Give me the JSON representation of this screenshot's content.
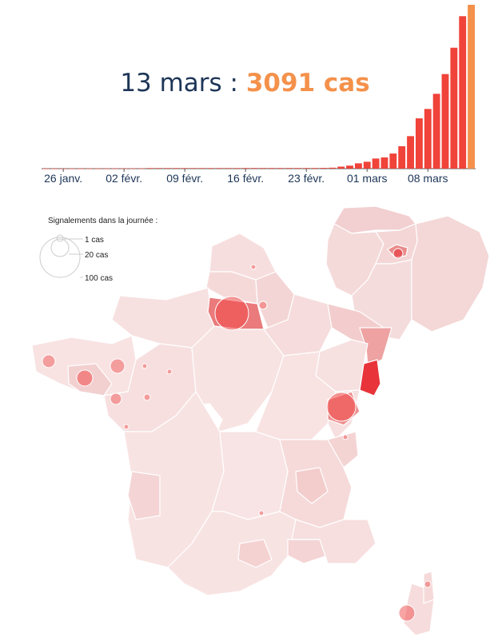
{
  "headline": {
    "date": "13 mars",
    "separator": " : ",
    "count": "3091 cas"
  },
  "chart_data": {
    "type": "bar",
    "title": "13 mars : 3091 cas",
    "x_tick_labels": [
      "26 janv.",
      "02 févr.",
      "09 févr.",
      "16 févr.",
      "23 févr.",
      "01 mars",
      "08 mars"
    ],
    "dates": [
      "24 janv.",
      "25 janv.",
      "26 janv.",
      "27 janv.",
      "28 janv.",
      "29 janv.",
      "30 janv.",
      "31 janv.",
      "01 févr.",
      "02 févr.",
      "03 févr.",
      "04 févr.",
      "05 févr.",
      "06 févr.",
      "07 févr.",
      "08 févr.",
      "09 févr.",
      "10 févr.",
      "11 févr.",
      "12 févr.",
      "13 févr.",
      "14 févr.",
      "15 févr.",
      "16 févr.",
      "17 févr.",
      "18 févr.",
      "19 févr.",
      "20 févr.",
      "21 févr.",
      "22 févr.",
      "23 févr.",
      "24 févr.",
      "25 févr.",
      "26 févr.",
      "27 févr.",
      "28 févr.",
      "29 févr.",
      "01 mars",
      "02 mars",
      "03 mars",
      "04 mars",
      "05 mars",
      "06 mars",
      "07 mars",
      "08 mars",
      "09 mars",
      "10 mars",
      "11 mars",
      "12 mars",
      "13 mars"
    ],
    "values": [
      3,
      3,
      3,
      3,
      3,
      5,
      5,
      6,
      6,
      6,
      6,
      6,
      11,
      11,
      11,
      11,
      11,
      11,
      11,
      11,
      11,
      11,
      11,
      12,
      12,
      12,
      12,
      12,
      12,
      12,
      12,
      12,
      14,
      18,
      38,
      57,
      100,
      130,
      191,
      212,
      285,
      423,
      613,
      949,
      1126,
      1412,
      1784,
      2281,
      2876,
      3091
    ],
    "highlight_last": true,
    "colors": {
      "bars": "#f0433a",
      "last_bar": "#f4914b",
      "text": "#1d3557"
    }
  },
  "map": {
    "legend": {
      "title": "Signalements dans la journée :",
      "items": [
        {
          "label": "1 cas",
          "value": 1
        },
        {
          "label": "20 cas",
          "value": 20
        },
        {
          "label": "100 cas",
          "value": 100
        }
      ]
    },
    "colors": {
      "low": "#f7dcdc",
      "mid": "#eea1a1",
      "high": "#e8333a",
      "bubble": "#f04a4a"
    }
  }
}
